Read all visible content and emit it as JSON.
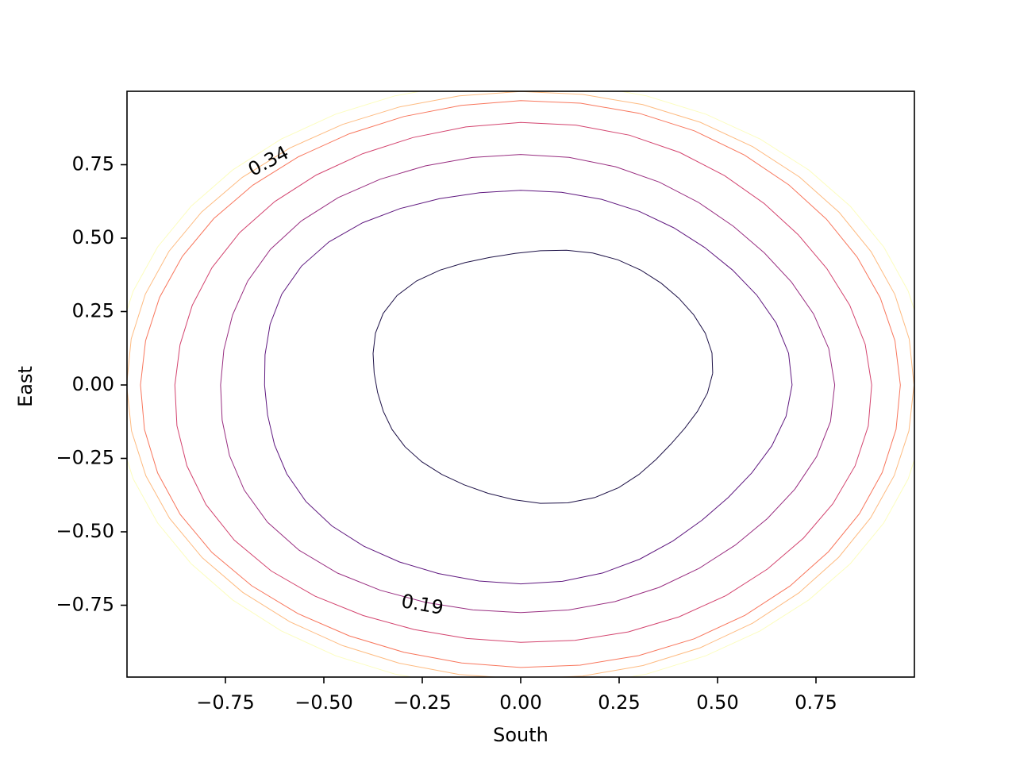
{
  "chart_data": {
    "type": "contour",
    "title": "",
    "xlabel": "South",
    "ylabel": "East",
    "xlim": [
      -1.0,
      1.0
    ],
    "ylim": [
      -1.0,
      1.0
    ],
    "x_ticks": [
      -0.75,
      -0.5,
      -0.25,
      0.0,
      0.25,
      0.5,
      0.75
    ],
    "x_tick_labels": [
      "−0.75",
      "−0.50",
      "−0.25",
      "0.00",
      "0.25",
      "0.50",
      "0.75"
    ],
    "y_ticks": [
      -0.75,
      -0.5,
      -0.25,
      0.0,
      0.25,
      0.5,
      0.75
    ],
    "y_tick_labels": [
      "−0.75",
      "−0.50",
      "−0.25",
      "0.00",
      "0.25",
      "0.50",
      "0.75"
    ],
    "grid": false,
    "colormap": "magma",
    "levels": [
      {
        "name": "level-1",
        "radius": 0.43,
        "color": "#1d1147",
        "wobble": 0.03
      },
      {
        "name": "level-2",
        "radius": 0.67,
        "color": "#5f187f",
        "wobble": 0.02
      },
      {
        "name": "level-3",
        "radius": 0.78,
        "color": "#982d80",
        "wobble": 0.015
      },
      {
        "name": "level-4",
        "radius": 0.885,
        "color": "#d3436e",
        "wobble": 0.01
      },
      {
        "name": "level-5",
        "radius": 0.965,
        "color": "#f8765c",
        "wobble": 0.005
      },
      {
        "name": "level-6",
        "radius": 1.0,
        "color": "#febb81",
        "wobble": 0.003
      },
      {
        "name": "level-7",
        "radius": 1.035,
        "color": "#fcfdbf",
        "wobble": 0.0
      }
    ],
    "contour_labels": [
      {
        "text": "0.34",
        "x": -0.64,
        "y": 0.76,
        "angle": -28
      },
      {
        "text": "0.19",
        "x": -0.25,
        "y": -0.75,
        "angle": 10
      }
    ]
  }
}
